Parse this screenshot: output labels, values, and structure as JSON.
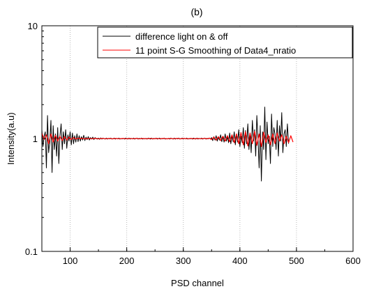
{
  "chart_data": {
    "type": "line",
    "title": "(b)",
    "xlabel": "PSD channel",
    "ylabel": "Intensity(a.u)",
    "xlim": [
      50,
      600
    ],
    "ylim": [
      0.1,
      10
    ],
    "yscale": "log",
    "grid": "vertical dotted",
    "legend_position": "top-right",
    "x_ticks": [
      100,
      200,
      300,
      400,
      500,
      600
    ],
    "x_tick_labels": [
      "100",
      "200",
      "300",
      "400",
      "500",
      "600"
    ],
    "y_ticks": [
      0.1,
      1,
      10
    ],
    "y_tick_labels": [
      "0.1",
      "1",
      "10"
    ],
    "series": [
      {
        "name": "difference light on & off",
        "color": "#000000",
        "x_start": 50,
        "x_step": 2,
        "values": [
          1.2,
          0.85,
          1.05,
          1.15,
          0.55,
          1.6,
          0.75,
          0.95,
          1.45,
          0.5,
          1.3,
          0.8,
          1.1,
          0.7,
          1.25,
          0.6,
          1.05,
          1.35,
          0.8,
          1.15,
          0.9,
          1.2,
          0.82,
          1.08,
          0.95,
          1.15,
          0.88,
          1.12,
          0.9,
          1.06,
          0.93,
          1.1,
          0.94,
          1.06,
          0.95,
          1.04,
          0.97,
          1.07,
          0.96,
          1.03,
          0.98,
          1.04,
          0.97,
          1.02,
          0.99,
          1.03,
          0.98,
          1.02,
          1.0,
          0.99,
          1.01,
          0.985,
          1.015,
          0.99,
          1.01,
          1.0,
          0.99,
          1.01,
          0.99,
          1.005,
          0.995,
          1.01,
          0.99,
          1.0,
          1.01,
          0.99,
          1.005,
          0.995,
          1.01,
          0.99,
          1.0,
          0.995,
          1.005,
          0.99,
          1.01,
          1.0,
          0.99,
          1.01,
          0.99,
          1.005,
          0.995,
          1.01,
          0.99,
          1.0,
          1.01,
          0.99,
          1.005,
          0.995,
          1.01,
          0.99,
          1.0,
          0.995,
          1.005,
          0.99,
          1.01,
          1.0,
          0.99,
          1.01,
          0.99,
          1.005,
          0.995,
          1.01,
          0.99,
          1.0,
          1.01,
          0.99,
          1.005,
          0.995,
          1.01,
          0.99,
          1.0,
          0.995,
          1.005,
          0.99,
          1.01,
          1.0,
          0.99,
          1.01,
          0.99,
          1.005,
          0.995,
          1.01,
          0.99,
          1.0,
          1.01,
          0.99,
          1.005,
          0.995,
          1.01,
          0.99,
          1.0,
          0.995,
          1.005,
          0.99,
          1.01,
          1.0,
          0.99,
          1.01,
          0.99,
          1.005,
          0.995,
          1.01,
          0.99,
          1.0,
          1.01,
          0.99,
          1.005,
          0.995,
          1.01,
          0.99,
          1.02,
          0.96,
          1.04,
          0.97,
          1.06,
          0.95,
          1.03,
          0.97,
          1.08,
          0.94,
          1.05,
          0.93,
          1.1,
          0.95,
          1.04,
          0.92,
          1.12,
          0.9,
          1.06,
          0.94,
          1.15,
          0.88,
          1.1,
          0.93,
          1.2,
          0.85,
          1.05,
          0.92,
          1.25,
          0.82,
          1.18,
          0.9,
          1.35,
          0.8,
          1.1,
          0.75,
          1.45,
          0.95,
          1.2,
          0.7,
          1.6,
          1.0,
          0.55,
          1.3,
          0.42,
          1.15,
          0.8,
          1.9,
          0.65,
          1.4,
          0.9,
          1.05,
          0.6,
          1.65,
          0.85,
          1.25,
          1.1,
          0.8,
          1.45,
          0.7,
          1.3,
          0.95,
          1.7,
          0.75,
          1.1,
          1.2,
          0.85,
          1.35,
          0.9
        ]
      },
      {
        "name": "11 point S-G Smoothing of Data4_nratio",
        "color": "#ff0000",
        "x_start": 50,
        "x_step": 4,
        "values": [
          1.12,
          0.98,
          1.08,
          0.9,
          1.1,
          0.93,
          1.07,
          0.95,
          1.05,
          0.96,
          1.04,
          0.97,
          1.03,
          0.98,
          1.02,
          0.99,
          1.01,
          1.0,
          1.005,
          0.995,
          1.0,
          1.003,
          0.997,
          1.0,
          1.004,
          0.996,
          1.0,
          1.003,
          0.997,
          1.0,
          1.004,
          0.996,
          1.0,
          1.003,
          0.997,
          1.0,
          1.004,
          0.996,
          1.0,
          1.003,
          0.997,
          1.0,
          1.004,
          0.996,
          1.0,
          1.003,
          0.997,
          1.0,
          1.004,
          0.996,
          1.0,
          1.003,
          0.997,
          1.0,
          1.004,
          0.996,
          1.0,
          1.003,
          0.997,
          1.0,
          1.004,
          0.996,
          1.0,
          1.003,
          0.997,
          1.0,
          1.004,
          0.996,
          1.0,
          1.003,
          0.997,
          1.0,
          1.004,
          0.996,
          1.01,
          0.98,
          1.03,
          0.97,
          1.04,
          0.96,
          1.05,
          0.95,
          1.06,
          0.94,
          1.08,
          0.92,
          1.1,
          0.9,
          1.13,
          0.88,
          1.15,
          0.86,
          1.12,
          0.9,
          1.16,
          0.87,
          1.1,
          0.85,
          1.14,
          0.92,
          1.08,
          0.88,
          1.1,
          0.9,
          1.12,
          0.95,
          1.08,
          0.9,
          1.05,
          0.92,
          1.06,
          0.93
        ]
      }
    ]
  }
}
